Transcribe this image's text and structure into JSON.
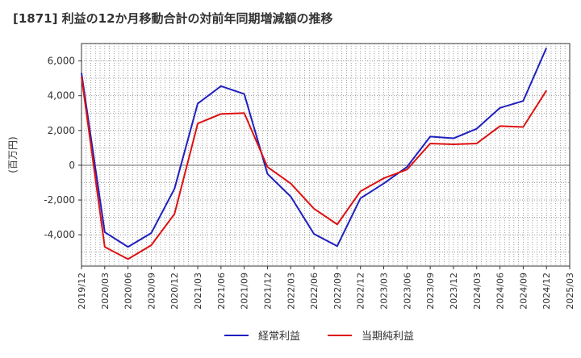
{
  "chart_data": {
    "type": "line",
    "title": "[1871]  利益の12か月移動合計の対前年同期増減額の推移",
    "ylabel": "(百万円)",
    "xlabel": "",
    "ylim": [
      -5800,
      7000
    ],
    "yticks": [
      -4000,
      -2000,
      0,
      2000,
      4000,
      6000
    ],
    "ytick_labels": [
      "-4,000",
      "-2,000",
      "0",
      "2,000",
      "4,000",
      "6,000"
    ],
    "categories": [
      "2019/12",
      "2020/03",
      "2020/06",
      "2020/09",
      "2020/12",
      "2021/03",
      "2021/06",
      "2021/09",
      "2021/12",
      "2022/03",
      "2022/06",
      "2022/09",
      "2022/12",
      "2023/03",
      "2023/06",
      "2023/09",
      "2023/12",
      "2024/03",
      "2024/06",
      "2024/09",
      "2024/12",
      "2025/03"
    ],
    "grid": true,
    "legend_position": "bottom",
    "series": [
      {
        "name": "経常利益",
        "color": "#1f1fbf",
        "values": [
          5300,
          -3850,
          -4700,
          -3900,
          -1350,
          3550,
          4550,
          4100,
          -500,
          -1800,
          -3950,
          -4650,
          -1900,
          -1050,
          -100,
          1650,
          1550,
          2100,
          3300,
          3700,
          6750,
          null
        ]
      },
      {
        "name": "当期純利益",
        "color": "#dd1111",
        "values": [
          5100,
          -4700,
          -5400,
          -4600,
          -2800,
          2400,
          2950,
          3000,
          -100,
          -1050,
          -2500,
          -3400,
          -1500,
          -750,
          -250,
          1250,
          1200,
          1250,
          2250,
          2200,
          4300,
          null
        ]
      }
    ]
  }
}
